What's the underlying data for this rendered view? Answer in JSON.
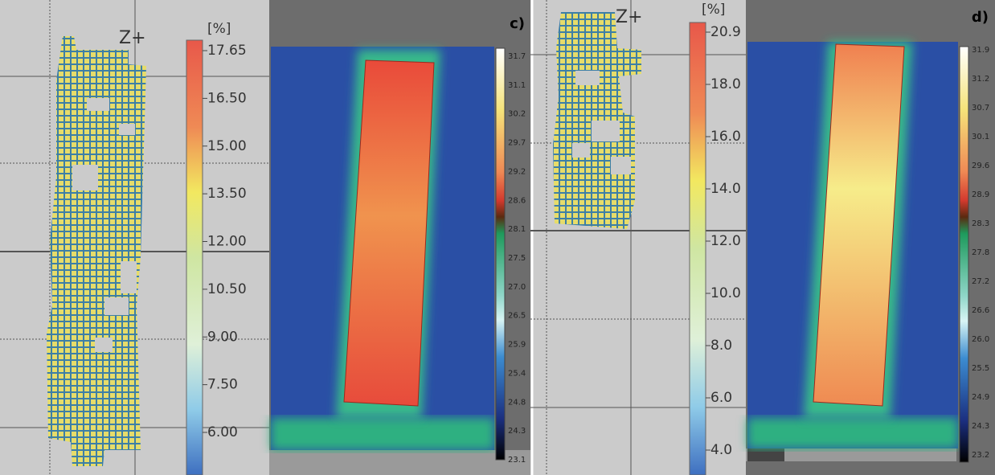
{
  "panels": [
    {
      "axis_label": "Z+",
      "unit": "[%]",
      "scale": [
        "17.65",
        "16.50",
        "15.00",
        "13.50",
        "12.00",
        "10.50",
        "9.00",
        "7.50",
        "6.00"
      ]
    },
    {
      "label": "c)",
      "scale": [
        "31.7",
        "31.1",
        "30.2",
        "29.7",
        "29.2",
        "28.6",
        "28.1",
        "27.5",
        "27.0",
        "26.5",
        "25.9",
        "25.4",
        "24.8",
        "24.3",
        "23.1"
      ]
    },
    {
      "axis_label": "Z+",
      "unit": "[%]",
      "scale": [
        "20.9",
        "18.0",
        "16.0",
        "14.0",
        "12.0",
        "10.0",
        "8.0",
        "6.0",
        "4.0"
      ]
    },
    {
      "label": "d)",
      "scale": [
        "31.9",
        "31.2",
        "30.7",
        "30.1",
        "29.6",
        "28.9",
        "28.3",
        "27.8",
        "27.2",
        "26.6",
        "26.0",
        "25.5",
        "24.9",
        "24.3",
        "23.2"
      ]
    }
  ]
}
